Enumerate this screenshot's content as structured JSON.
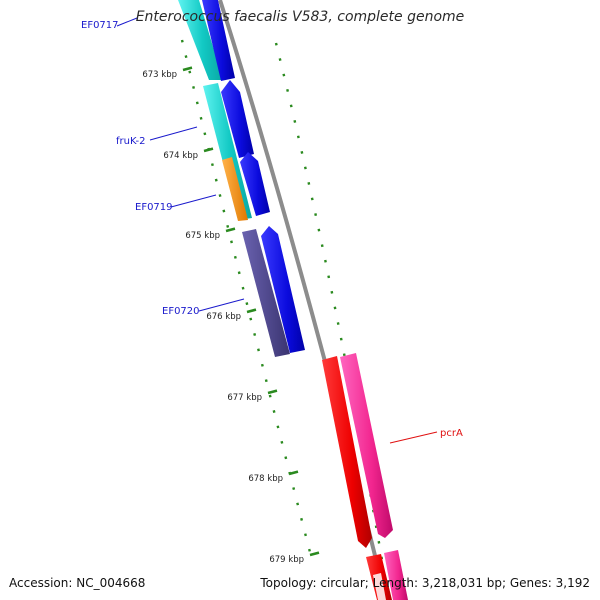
{
  "title": "Enterococcus faecalis V583, complete genome",
  "footer": {
    "accession": "Accession: NC_004668",
    "topology": "Topology: circular; Length: 3,218,031 bp; Genes: 3,192"
  },
  "colors": {
    "backbone": "#8c8c8c",
    "tick": "#2a8a1f",
    "label_blue": "#1a1acc",
    "label_red": "#e01010"
  },
  "ticks": [
    {
      "label": "673 kbp",
      "bp": 673000
    },
    {
      "label": "674 kbp",
      "bp": 674000
    },
    {
      "label": "675 kbp",
      "bp": 675000
    },
    {
      "label": "676 kbp",
      "bp": 676000
    },
    {
      "label": "677 kbp",
      "bp": 677000
    },
    {
      "label": "678 kbp",
      "bp": 678000
    },
    {
      "label": "679 kbp",
      "bp": 679000
    }
  ],
  "gene_labels": [
    {
      "name": "EF0717",
      "color": "#1a1acc"
    },
    {
      "name": "fruK-2",
      "color": "#1a1acc"
    },
    {
      "name": "EF0719",
      "color": "#1a1acc"
    },
    {
      "name": "EF0720",
      "color": "#1a1acc"
    },
    {
      "name": "pcrA",
      "color": "#e01010"
    }
  ]
}
